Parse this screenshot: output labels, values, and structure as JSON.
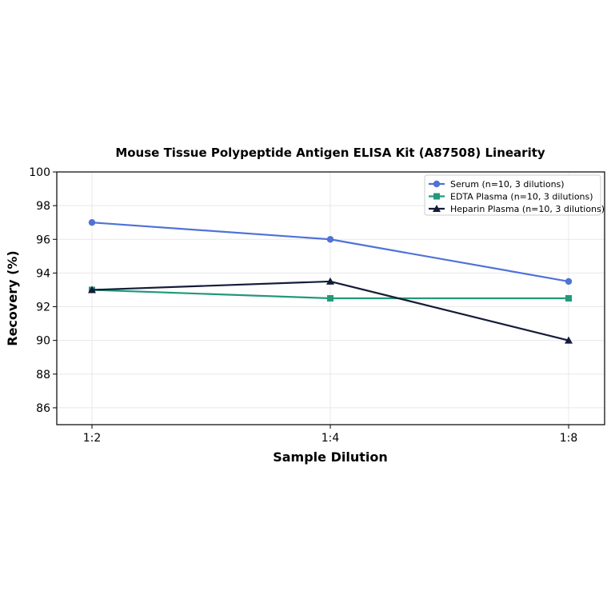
{
  "chart_data": {
    "type": "line",
    "title": "Mouse Tissue Polypeptide Antigen ELISA Kit (A87508) Linearity",
    "xlabel": "Sample Dilution",
    "ylabel": "Recovery (%)",
    "categories": [
      "1:2",
      "1:4",
      "1:8"
    ],
    "ylim": [
      85,
      100
    ],
    "yticks": [
      86,
      88,
      90,
      92,
      94,
      96,
      98,
      100
    ],
    "grid": true,
    "legend_position": "top-right",
    "series": [
      {
        "name": "Serum (n=10, 3 dilutions)",
        "values": [
          97,
          96,
          93.5
        ],
        "color": "#4f72d6",
        "marker": "circle"
      },
      {
        "name": "EDTA Plasma (n=10, 3 dilutions)",
        "values": [
          93,
          92.5,
          92.5
        ],
        "color": "#22997a",
        "marker": "square"
      },
      {
        "name": "Heparin Plasma (n=10, 3 dilutions)",
        "values": [
          93,
          93.5,
          90
        ],
        "color": "#141c3a",
        "marker": "triangle"
      }
    ]
  }
}
